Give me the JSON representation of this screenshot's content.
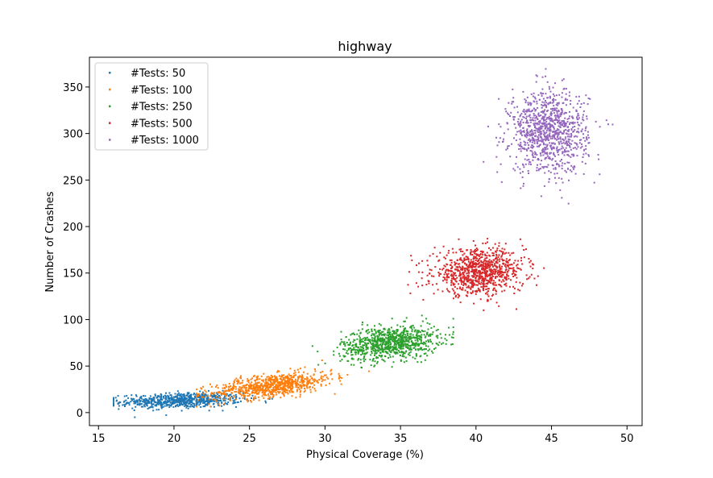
{
  "chart_data": {
    "type": "scatter",
    "title": "highway",
    "xlabel": "Physical Coverage  (%)",
    "ylabel": "Number of Crashes",
    "xlim": [
      14.4,
      51.0
    ],
    "ylim": [
      -14,
      382
    ],
    "xticks": [
      15,
      20,
      25,
      30,
      35,
      40,
      45,
      50
    ],
    "yticks": [
      0,
      50,
      100,
      150,
      200,
      250,
      300,
      350
    ],
    "grid": false,
    "legend_position": "top-left",
    "series": [
      {
        "name": "#Tests: 50",
        "color": "#1f77b4",
        "cluster": {
          "x_range": [
            16,
            31
          ],
          "x_center": 20.5,
          "x_sd": 2.0,
          "y_center": 13,
          "y_sd": 4,
          "slope": 0.4,
          "n": 700
        }
      },
      {
        "name": "#Tests: 100",
        "color": "#ff7f0e",
        "cluster": {
          "x_range": [
            21.5,
            33.5
          ],
          "x_center": 26.5,
          "x_sd": 2.0,
          "y_center": 29,
          "y_sd": 6,
          "slope": 2.0,
          "n": 800
        }
      },
      {
        "name": "#Tests: 250",
        "color": "#2ca02c",
        "cluster": {
          "x_range": [
            29,
            38.5
          ],
          "x_center": 34.3,
          "x_sd": 1.6,
          "y_center": 75,
          "y_sd": 9,
          "slope": 1.5,
          "n": 900
        }
      },
      {
        "name": "#Tests: 500",
        "color": "#d62728",
        "cluster": {
          "x_range": [
            35.5,
            44.5
          ],
          "x_center": 40.2,
          "x_sd": 1.5,
          "y_center": 151,
          "y_sd": 12,
          "slope": 0.5,
          "n": 900
        }
      },
      {
        "name": "#Tests: 1000",
        "color": "#9467bd",
        "cluster": {
          "x_range": [
            40.5,
            49.3
          ],
          "x_center": 44.8,
          "x_sd": 1.3,
          "y_center": 302,
          "y_sd": 22,
          "slope": 0,
          "n": 1000
        }
      }
    ]
  }
}
